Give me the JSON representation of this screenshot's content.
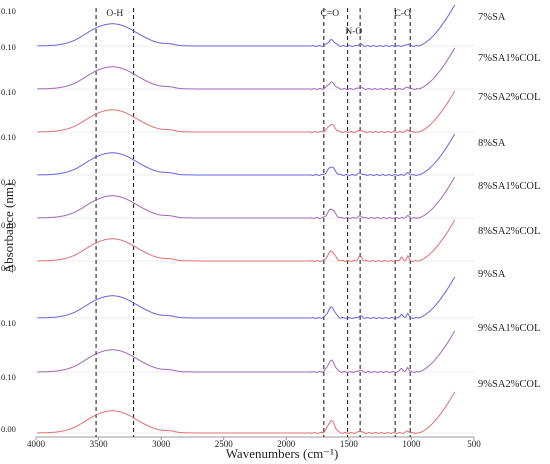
{
  "chart_data": {
    "type": "line",
    "xlabel": "Wavenumbers (cm⁻¹)",
    "ylabel": "Absorbance (nm)",
    "xlim": [
      4000,
      500
    ],
    "x_ticks": [
      4000,
      3500,
      3000,
      2500,
      2000,
      1500,
      1000,
      500
    ],
    "y_tick_labels": [
      "0.10",
      "0.10",
      "0.10",
      "0.10",
      "0.10",
      "0.10",
      "0.10",
      "0.10",
      "0.10",
      "0.00"
    ],
    "grid": false,
    "legend": "labels at right of each stacked curve",
    "band_markers": [
      {
        "label": "O-H",
        "x": [
          3520,
          3220
        ]
      },
      {
        "label": "C=O",
        "x": [
          1700
        ]
      },
      {
        "label": "N-O",
        "x": [
          1510,
          1410
        ]
      },
      {
        "label": "C-O",
        "x": [
          1130,
          1010
        ]
      }
    ],
    "series": [
      {
        "name": "7%SA",
        "color": "#6666e0"
      },
      {
        "name": "7%SA1%COL",
        "color": "#a066b8"
      },
      {
        "name": "7%SA2%COL",
        "color": "#e07070"
      },
      {
        "name": "8%SA",
        "color": "#6666e0"
      },
      {
        "name": "8%SA1%COL",
        "color": "#a066b8"
      },
      {
        "name": "8%SA2%COL",
        "color": "#e07070"
      },
      {
        "name": "9%SA",
        "color": "#6666e0"
      },
      {
        "name": "9%SA1%COL",
        "color": "#a066b8"
      },
      {
        "name": "9%SA2%COL",
        "color": "#e07070"
      }
    ]
  }
}
